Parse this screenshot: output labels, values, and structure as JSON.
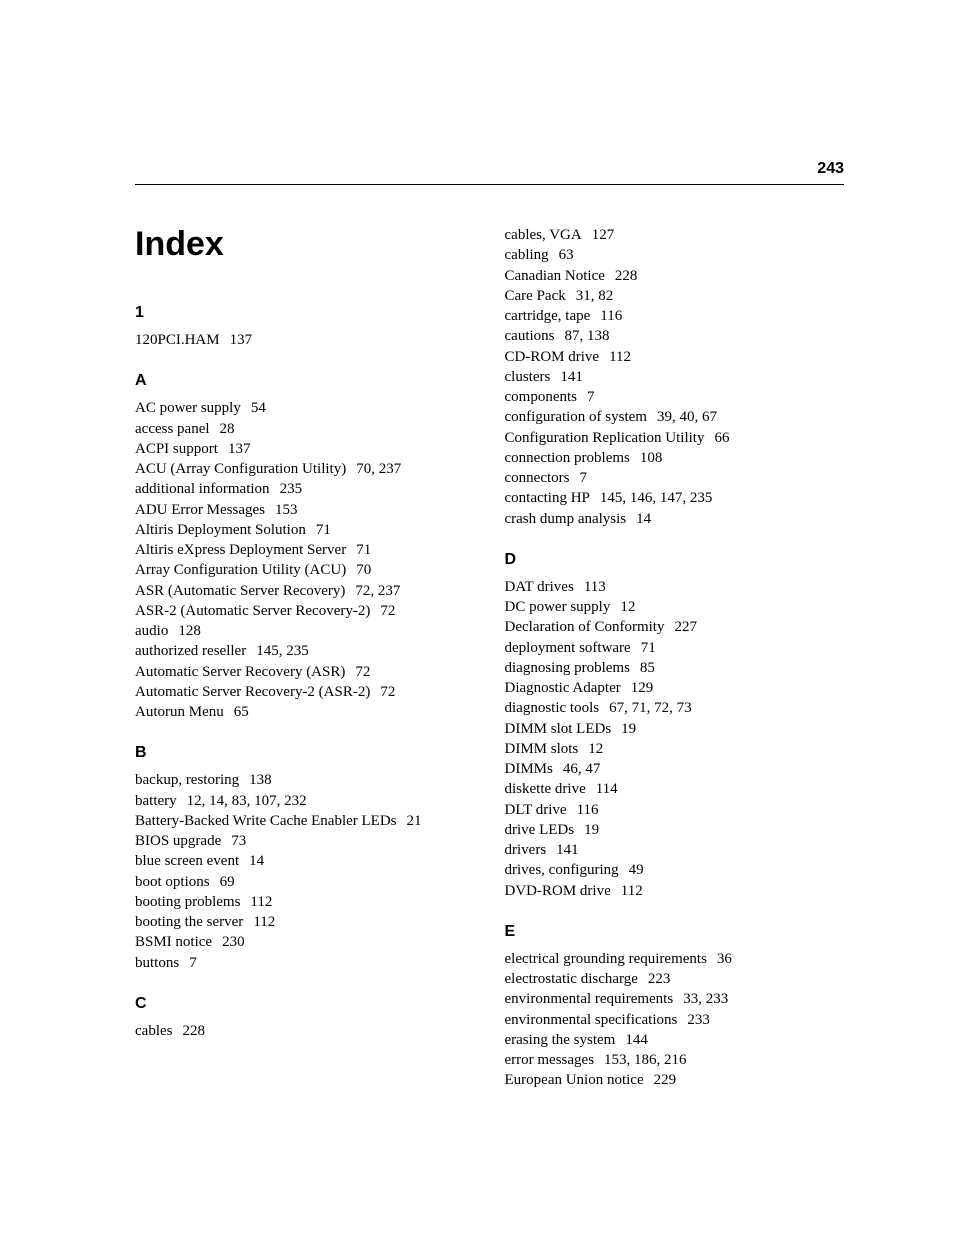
{
  "page_number": "243",
  "title": "Index",
  "left_column": [
    {
      "letter": "1",
      "entries": [
        {
          "term": "120PCI.HAM",
          "pages": "137"
        }
      ]
    },
    {
      "letter": "A",
      "entries": [
        {
          "term": "AC power supply",
          "pages": "54"
        },
        {
          "term": "access panel",
          "pages": "28"
        },
        {
          "term": "ACPI support",
          "pages": "137"
        },
        {
          "term": "ACU (Array Configuration Utility)",
          "pages": "70, 237"
        },
        {
          "term": "additional information",
          "pages": "235"
        },
        {
          "term": "ADU Error Messages",
          "pages": "153"
        },
        {
          "term": "Altiris Deployment Solution",
          "pages": "71"
        },
        {
          "term": "Altiris eXpress Deployment Server",
          "pages": "71"
        },
        {
          "term": "Array Configuration Utility (ACU)",
          "pages": "70"
        },
        {
          "term": "ASR (Automatic Server Recovery)",
          "pages": "72, 237"
        },
        {
          "term": "ASR-2 (Automatic Server Recovery-2)",
          "pages": "72"
        },
        {
          "term": "audio",
          "pages": "128"
        },
        {
          "term": "authorized reseller",
          "pages": "145, 235"
        },
        {
          "term": "Automatic Server Recovery (ASR)",
          "pages": "72"
        },
        {
          "term": "Automatic Server Recovery-2 (ASR-2)",
          "pages": "72"
        },
        {
          "term": "Autorun Menu",
          "pages": "65"
        }
      ]
    },
    {
      "letter": "B",
      "entries": [
        {
          "term": "backup, restoring",
          "pages": "138"
        },
        {
          "term": "battery",
          "pages": "12, 14, 83, 107, 232"
        },
        {
          "term": "Battery-Backed Write Cache Enabler LEDs",
          "pages": "21"
        },
        {
          "term": "BIOS upgrade",
          "pages": "73"
        },
        {
          "term": "blue screen event",
          "pages": "14"
        },
        {
          "term": "boot options",
          "pages": "69"
        },
        {
          "term": "booting problems",
          "pages": "112"
        },
        {
          "term": "booting the server",
          "pages": "112"
        },
        {
          "term": "BSMI notice",
          "pages": "230"
        },
        {
          "term": "buttons",
          "pages": "7"
        }
      ]
    },
    {
      "letter": "C",
      "entries": [
        {
          "term": "cables",
          "pages": "228"
        }
      ]
    }
  ],
  "right_column": [
    {
      "letter": null,
      "entries": [
        {
          "term": "cables, VGA",
          "pages": "127"
        },
        {
          "term": "cabling",
          "pages": "63"
        },
        {
          "term": "Canadian Notice",
          "pages": "228"
        },
        {
          "term": "Care Pack",
          "pages": "31, 82"
        },
        {
          "term": "cartridge, tape",
          "pages": "116"
        },
        {
          "term": "cautions",
          "pages": "87, 138"
        },
        {
          "term": "CD-ROM drive",
          "pages": "112"
        },
        {
          "term": "clusters",
          "pages": "141"
        },
        {
          "term": "components",
          "pages": "7"
        },
        {
          "term": "configuration of system",
          "pages": "39, 40, 67"
        },
        {
          "term": "Configuration Replication Utility",
          "pages": "66"
        },
        {
          "term": "connection problems",
          "pages": "108"
        },
        {
          "term": "connectors",
          "pages": "7"
        },
        {
          "term": "contacting HP",
          "pages": "145, 146, 147, 235"
        },
        {
          "term": "crash dump analysis",
          "pages": "14"
        }
      ]
    },
    {
      "letter": "D",
      "entries": [
        {
          "term": "DAT drives",
          "pages": "113"
        },
        {
          "term": "DC power supply",
          "pages": "12"
        },
        {
          "term": "Declaration of Conformity",
          "pages": "227"
        },
        {
          "term": "deployment software",
          "pages": "71"
        },
        {
          "term": "diagnosing problems",
          "pages": "85"
        },
        {
          "term": "Diagnostic Adapter",
          "pages": "129"
        },
        {
          "term": "diagnostic tools",
          "pages": "67, 71, 72, 73"
        },
        {
          "term": "DIMM slot LEDs",
          "pages": "19"
        },
        {
          "term": "DIMM slots",
          "pages": "12"
        },
        {
          "term": "DIMMs",
          "pages": "46, 47"
        },
        {
          "term": "diskette drive",
          "pages": "114"
        },
        {
          "term": "DLT drive",
          "pages": "116"
        },
        {
          "term": "drive LEDs",
          "pages": "19"
        },
        {
          "term": "drivers",
          "pages": "141"
        },
        {
          "term": "drives, configuring",
          "pages": "49"
        },
        {
          "term": "DVD-ROM drive",
          "pages": "112"
        }
      ]
    },
    {
      "letter": "E",
      "entries": [
        {
          "term": "electrical grounding requirements",
          "pages": "36"
        },
        {
          "term": "electrostatic discharge",
          "pages": "223"
        },
        {
          "term": "environmental requirements",
          "pages": "33, 233"
        },
        {
          "term": "environmental specifications",
          "pages": "233"
        },
        {
          "term": "erasing the system",
          "pages": "144"
        },
        {
          "term": "error messages",
          "pages": "153, 186, 216"
        },
        {
          "term": "European Union notice",
          "pages": "229"
        }
      ]
    }
  ]
}
